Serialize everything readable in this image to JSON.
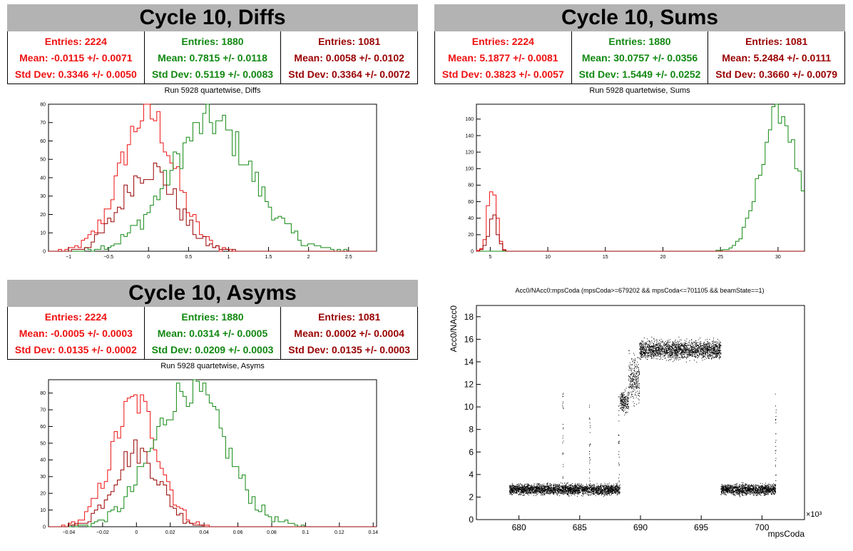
{
  "colors": {
    "s1": "#ee1111",
    "s2": "#118811",
    "s3": "#990000"
  },
  "panels": {
    "diffs": {
      "title": "Cycle 10, Diffs",
      "stats": [
        {
          "entries": "Entries: 2224",
          "mean": "Mean: -0.0115 +/- 0.0071",
          "std": "Std Dev: 0.3346 +/- 0.0050"
        },
        {
          "entries": "Entries: 1880",
          "mean": "Mean: 0.7815 +/- 0.0118",
          "std": "Std Dev: 0.5119 +/- 0.0083"
        },
        {
          "entries": "Entries: 1081",
          "mean": "Mean: 0.0058 +/- 0.0102",
          "std": "Std Dev: 0.3364 +/- 0.0072"
        }
      ],
      "subtitle": "Run 5928 quartetwise, Diffs"
    },
    "sums": {
      "title": "Cycle 10, Sums",
      "stats": [
        {
          "entries": "Entries: 2224",
          "mean": "Mean: 5.1877 +/- 0.0081",
          "std": "Std Dev: 0.3823 +/- 0.0057"
        },
        {
          "entries": "Entries: 1880",
          "mean": "Mean: 30.0757 +/- 0.0356",
          "std": "Std Dev: 1.5449 +/- 0.0252"
        },
        {
          "entries": "Entries: 1081",
          "mean": "Mean: 5.2484 +/- 0.0111",
          "std": "Std Dev: 0.3660 +/- 0.0079"
        }
      ],
      "subtitle": "Run 5928 quartetwise, Sums"
    },
    "asyms": {
      "title": "Cycle 10, Asyms",
      "stats": [
        {
          "entries": "Entries: 2224",
          "mean": "Mean: -0.0005 +/- 0.0003",
          "std": "Std Dev: 0.0135 +/- 0.0002"
        },
        {
          "entries": "Entries: 1880",
          "mean": "Mean: 0.0314 +/- 0.0005",
          "std": "Std Dev: 0.0209 +/- 0.0003"
        },
        {
          "entries": "Entries: 1081",
          "mean": "Mean: 0.0002 +/- 0.0004",
          "std": "Std Dev: 0.0135 +/- 0.0003"
        }
      ],
      "subtitle": "Run 5928 quartetwise, Asyms"
    },
    "scatter": {
      "title": "Acc0/NAcc0:mpsCoda (mpsCoda>=679202 && mpsCoda<=701105 && beamState==1)",
      "xlabel": "mpsCoda",
      "ylabel": "Acc0/NAcc0",
      "exponent": "×10³"
    }
  },
  "chart_data": [
    {
      "type": "histogram",
      "id": "diffs",
      "xlim": [
        -1.25,
        2.85
      ],
      "ylim": [
        0,
        80
      ],
      "xticks": [
        -1,
        -0.5,
        0,
        0.5,
        1,
        1.5,
        2,
        2.5
      ],
      "xticklabels": [
        "−1",
        "−0.5",
        "0",
        "0.5",
        "1",
        "1.5",
        "2",
        "2.5"
      ],
      "yticks": [
        0,
        10,
        20,
        30,
        40,
        50,
        60,
        70,
        80
      ],
      "series": [
        {
          "color": "#ee1111",
          "entries": 2224,
          "mean": -0.0115,
          "std": 0.3346,
          "peak": 75
        },
        {
          "color": "#118811",
          "entries": 1880,
          "mean": 0.7815,
          "std": 0.5119,
          "peak": 70
        },
        {
          "color": "#990000",
          "entries": 1081,
          "mean": 0.0058,
          "std": 0.3364,
          "peak": 45
        }
      ]
    },
    {
      "type": "histogram",
      "id": "sums",
      "xlim": [
        3.8,
        32.3
      ],
      "ylim": [
        0,
        178
      ],
      "xticks": [
        5,
        10,
        15,
        20,
        25,
        30
      ],
      "xticklabels": [
        "5",
        "10",
        "15",
        "20",
        "25",
        "30"
      ],
      "yticks": [
        0,
        20,
        40,
        60,
        80,
        100,
        120,
        140,
        160
      ],
      "series": [
        {
          "color": "#ee1111",
          "entries": 2224,
          "mean": 5.1877,
          "std": 0.3823,
          "peak": 85
        },
        {
          "color": "#118811",
          "entries": 1880,
          "mean": 30.0757,
          "std": 1.5449,
          "peak": 170
        },
        {
          "color": "#990000",
          "entries": 1081,
          "mean": 5.2484,
          "std": 0.366,
          "peak": 40
        }
      ]
    },
    {
      "type": "histogram",
      "id": "asyms",
      "xlim": [
        -0.052,
        0.142
      ],
      "ylim": [
        0,
        88
      ],
      "xticks": [
        -0.04,
        -0.02,
        0,
        0.02,
        0.04,
        0.06,
        0.08,
        0.1,
        0.12,
        0.14
      ],
      "xticklabels": [
        "−0.04",
        "−0.02",
        "0",
        "0.02",
        "0.04",
        "0.06",
        "0.08",
        "0.1",
        "0.12",
        "0.14"
      ],
      "yticks": [
        0,
        10,
        20,
        30,
        40,
        50,
        60,
        70,
        80
      ],
      "series": [
        {
          "color": "#ee1111",
          "entries": 2224,
          "mean": -0.0005,
          "std": 0.0135,
          "peak": 75
        },
        {
          "color": "#118811",
          "entries": 1880,
          "mean": 0.0314,
          "std": 0.0209,
          "peak": 83
        },
        {
          "color": "#990000",
          "entries": 1081,
          "mean": 0.0002,
          "std": 0.0135,
          "peak": 45
        }
      ]
    },
    {
      "type": "scatter",
      "id": "scatter",
      "title": "Acc0/NAcc0:mpsCoda (mpsCoda>=679202 && mpsCoda<=701105 && beamState==1)",
      "xlabel": "mpsCoda",
      "ylabel": "Acc0/NAcc0",
      "xlim": [
        676.5,
        703.5
      ],
      "ylim": [
        0,
        19
      ],
      "xticks": [
        680,
        685,
        690,
        695,
        700
      ],
      "yticks": [
        0,
        2,
        4,
        6,
        8,
        10,
        12,
        14,
        16,
        18
      ],
      "clusters": [
        {
          "x": [
            679.2,
            688.3
          ],
          "y": 2.7,
          "spread": 0.35
        },
        {
          "x": [
            688.3,
            689.0
          ],
          "y": 10.5,
          "spread": 0.7
        },
        {
          "x": [
            689.0,
            689.9
          ],
          "y": 12.5,
          "spread": 1.5
        },
        {
          "x": [
            689.9,
            696.6
          ],
          "y": 15.1,
          "spread": 0.6
        },
        {
          "x": [
            696.6,
            701.1
          ],
          "y": 2.7,
          "spread": 0.35
        }
      ]
    }
  ]
}
